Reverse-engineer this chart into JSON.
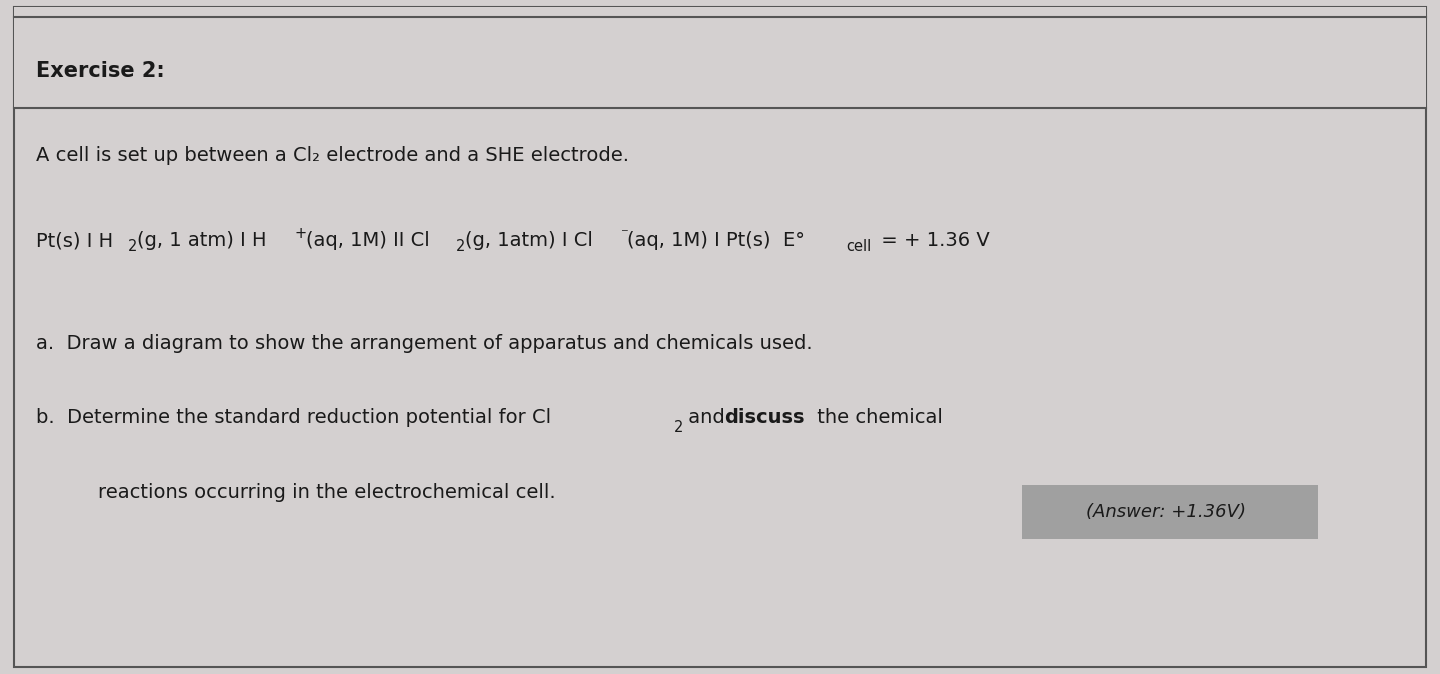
{
  "title": "Exercise 2:",
  "line1": "A cell is set up between a Cl₂ electrode and a SHE electrode.",
  "line2_parts": [
    {
      "text": "Pt(s) I H",
      "style": "normal"
    },
    {
      "text": "2",
      "style": "sub"
    },
    {
      "text": "(g, 1 atm) I H",
      "style": "normal"
    },
    {
      "text": "+",
      "style": "super"
    },
    {
      "text": "(aq, 1M) II Cl",
      "style": "normal"
    },
    {
      "text": "2",
      "style": "sub"
    },
    {
      "text": "(g, 1atm) I Cl",
      "style": "normal"
    },
    {
      "text": "⁻",
      "style": "super"
    },
    {
      "text": "(aq, 1M) I Pt(s)  E°",
      "style": "normal"
    },
    {
      "text": "cell",
      "style": "sub_normal"
    },
    {
      "text": " = + 1.36 V",
      "style": "normal"
    }
  ],
  "item_a": "a.  Draw a diagram to show the arrangement of apparatus and chemicals used.",
  "item_b1": "b.  Determine the standard reduction potential for Cl₂ and ",
  "item_b1_bold": "discuss",
  "item_b1_end": " the chemical",
  "item_b2": "     reactions occurring in the electrochemical cell.",
  "answer": "(Answer: +1.36V)",
  "bg_color": "#d4d0d0",
  "text_color": "#1a1a1a",
  "answer_bg": "#a0a0a0",
  "border_color": "#555555",
  "font_size_title": 15,
  "font_size_main": 14,
  "fig_width": 14.4,
  "fig_height": 6.74
}
